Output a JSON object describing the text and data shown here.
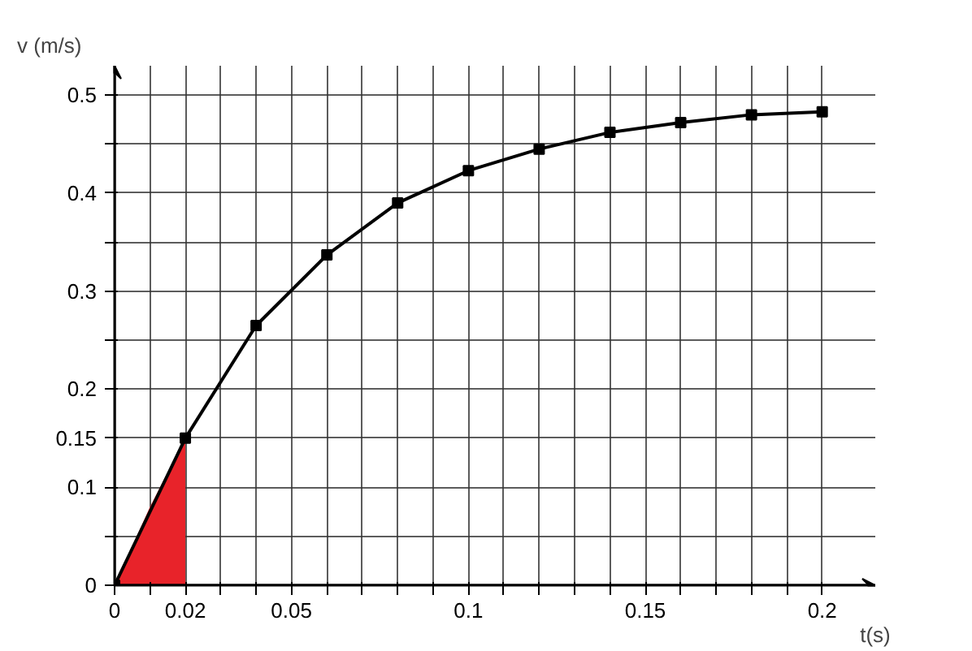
{
  "chart_data": {
    "type": "line",
    "xlabel": "t(s)",
    "ylabel": "v (m/s)",
    "xlim": [
      0,
      0.215
    ],
    "ylim": [
      0,
      0.53
    ],
    "xticks": [
      0,
      {
        "value": 0.01,
        "label": null
      },
      {
        "value": 0.02,
        "label": "0.02"
      },
      {
        "value": 0.03,
        "label": null
      },
      {
        "value": 0.04,
        "label": null
      },
      0.05,
      {
        "value": 0.06,
        "label": null
      },
      {
        "value": 0.07,
        "label": null
      },
      {
        "value": 0.08,
        "label": null
      },
      {
        "value": 0.09,
        "label": null
      },
      0.1,
      {
        "value": 0.11,
        "label": null
      },
      {
        "value": 0.12,
        "label": null
      },
      {
        "value": 0.13,
        "label": null
      },
      {
        "value": 0.14,
        "label": null
      },
      0.15,
      {
        "value": 0.16,
        "label": null
      },
      {
        "value": 0.17,
        "label": null
      },
      {
        "value": 0.18,
        "label": null
      },
      {
        "value": 0.19,
        "label": null
      },
      0.2
    ],
    "yticks": [
      0,
      {
        "value": 0.05,
        "label": null
      },
      0.1,
      {
        "value": 0.15,
        "label": "0.15"
      },
      0.2,
      {
        "value": 0.25,
        "label": null
      },
      0.3,
      {
        "value": 0.35,
        "label": null
      },
      0.4,
      {
        "value": 0.45,
        "label": null
      },
      0.5
    ],
    "grid": true,
    "line_style": "solid",
    "series": [
      {
        "color": "#000000",
        "marker": "square",
        "x": [
          0,
          0.02,
          0.04,
          0.06,
          0.08,
          0.1,
          0.12,
          0.14,
          0.16,
          0.18,
          0.2
        ],
        "values": [
          0,
          0.15,
          0.265,
          0.337,
          0.39,
          0.423,
          0.445,
          0.462,
          0.472,
          0.48,
          0.483
        ]
      },
      {
        "type": "area",
        "color": "#e8232a",
        "x": [
          0,
          0.01,
          0.02
        ],
        "values": [
          0,
          0.08,
          0.15
        ]
      }
    ]
  }
}
